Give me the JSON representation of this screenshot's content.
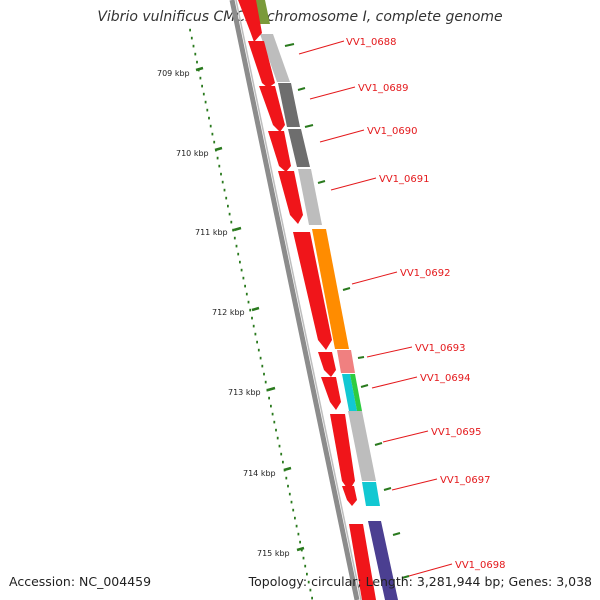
{
  "title": "Vibrio vulnificus CMCP6 chromosome I, complete genome",
  "footer": {
    "accession": "Accession: NC_004459",
    "topology": "Topology: circular; Length: 3,281,944 bp; Genes: 3,038"
  },
  "colors": {
    "backbone": "#8c8c8c",
    "cds": "#f0151a",
    "tick": "#2a7a1e",
    "label": "#e4191c",
    "cog_light_gray": "#bdbdbd",
    "cog_dark_gray": "#6e6e6e",
    "cog_orange": "#ff8c00",
    "cog_pink": "#f08080",
    "cog_cyan": "#12c8d2",
    "cog_green": "#2ecc40",
    "cog_purple": "#4b3f91",
    "cog_olive": "#7a9a3a"
  },
  "ticks": [
    "709 kbp",
    "710 kbp",
    "711 kbp",
    "712 kbp",
    "713 kbp",
    "714 kbp",
    "715 kbp"
  ],
  "genes": [
    "VV1_0688",
    "VV1_0689",
    "VV1_0690",
    "VV1_0691",
    "VV1_0692",
    "VV1_0693",
    "VV1_0694",
    "VV1_0695",
    "VV1_0697",
    "VV1_0698"
  ]
}
